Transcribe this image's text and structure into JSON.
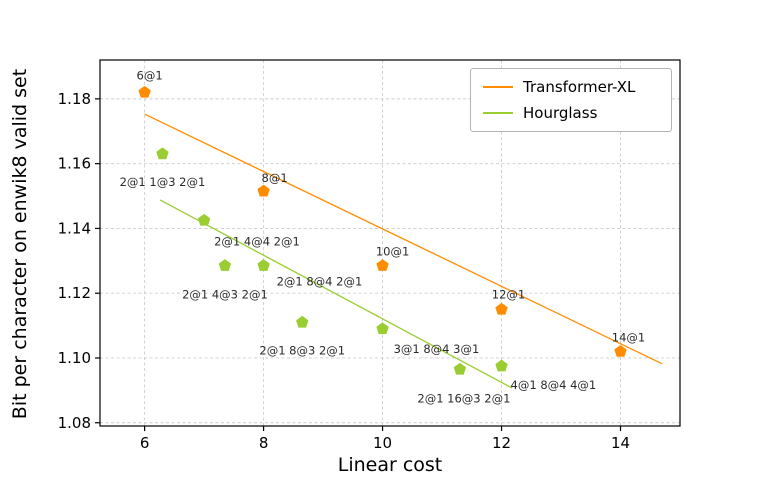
{
  "chart_data": {
    "type": "scatter",
    "title": "",
    "xlabel": "Linear cost",
    "ylabel": "Bit per character on enwik8 valid set",
    "xlim": [
      5.25,
      15.0
    ],
    "ylim": [
      1.079,
      1.192
    ],
    "xticks": [
      6,
      8,
      10,
      12,
      14
    ],
    "xtick_labels": [
      "6",
      "8",
      "10",
      "12",
      "14"
    ],
    "yticks": [
      1.08,
      1.1,
      1.12,
      1.14,
      1.16,
      1.18
    ],
    "ytick_labels": [
      "1.08",
      "1.10",
      "1.12",
      "1.14",
      "1.16",
      "1.18"
    ],
    "grid": true,
    "legend_position": "upper right",
    "grid_color": "#cccccc",
    "axis_color": "#000000",
    "annotation_color": "#2b2b2b",
    "series": [
      {
        "name": "Transformer-XL",
        "color": "#ff8c00",
        "marker": "pentagon",
        "points": [
          {
            "x": 6.0,
            "y": 1.182,
            "label": "6@1",
            "dx": 5,
            "dy": -13,
            "anchor": "middle"
          },
          {
            "x": 8.0,
            "y": 1.1515,
            "label": "8@1",
            "dx": 11,
            "dy": -9,
            "anchor": "middle"
          },
          {
            "x": 10.0,
            "y": 1.1285,
            "label": "10@1",
            "dx": 10,
            "dy": -10,
            "anchor": "middle"
          },
          {
            "x": 12.0,
            "y": 1.115,
            "label": "12@1",
            "dx": 7,
            "dy": -11,
            "anchor": "middle"
          },
          {
            "x": 14.0,
            "y": 1.102,
            "label": "14@1",
            "dx": 8,
            "dy": -10,
            "anchor": "middle"
          }
        ],
        "trendline": {
          "x1": 6.0,
          "y1": 1.1753,
          "x2": 14.7,
          "y2": 1.0982
        }
      },
      {
        "name": "Hourglass",
        "color": "#9acd32",
        "marker": "pentagon",
        "points": [
          {
            "x": 6.3,
            "y": 1.163,
            "label": "2@1 1@3 2@1",
            "dx": 0,
            "dy": 32,
            "anchor": "middle"
          },
          {
            "x": 7.0,
            "y": 1.1425,
            "label": "2@1 4@4 2@1",
            "dx": 10,
            "dy": 25,
            "anchor": "start"
          },
          {
            "x": 7.35,
            "y": 1.1285,
            "label": "2@1 4@3 2@1",
            "dx": 0,
            "dy": 33,
            "anchor": "middle"
          },
          {
            "x": 8.0,
            "y": 1.1285,
            "label": "2@1 8@4 2@1",
            "dx": 13,
            "dy": 20,
            "anchor": "start"
          },
          {
            "x": 8.65,
            "y": 1.111,
            "label": "2@1 8@3 2@1",
            "dx": 0,
            "dy": 32,
            "anchor": "middle"
          },
          {
            "x": 10.0,
            "y": 1.109,
            "label": "3@1 8@4 3@1",
            "dx": 11,
            "dy": 24,
            "anchor": "start"
          },
          {
            "x": 11.3,
            "y": 1.0965,
            "label": "2@1 16@3 2@1",
            "dx": 4,
            "dy": 33,
            "anchor": "middle"
          },
          {
            "x": 12.0,
            "y": 1.0975,
            "label": "4@1 8@4 4@1",
            "dx": 9,
            "dy": 23,
            "anchor": "start"
          }
        ],
        "trendline": {
          "x1": 6.26,
          "y1": 1.1488,
          "x2": 12.18,
          "y2": 1.0907
        }
      }
    ]
  }
}
